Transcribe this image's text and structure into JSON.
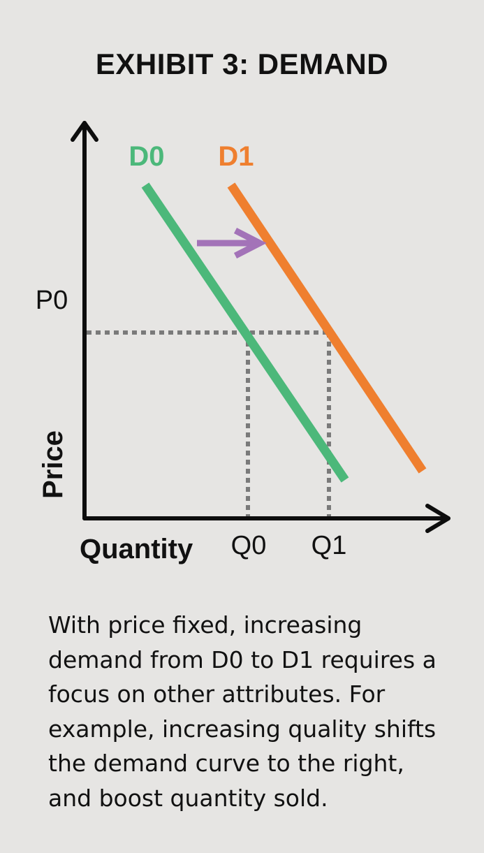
{
  "title": "EXHIBIT 3: DEMAND",
  "chart_data": {
    "type": "line",
    "xlabel": "Quantity",
    "ylabel": "Price",
    "series": [
      {
        "name": "D0",
        "color": "#4cb87a"
      },
      {
        "name": "D1",
        "color": "#ef7f2f"
      }
    ],
    "price_marker": "P0",
    "quantity_markers": [
      "Q0",
      "Q1"
    ],
    "shift_arrow": {
      "from": "D0",
      "to": "D1",
      "color": "#a373b8"
    },
    "reference_line_color": "#7a7a7a"
  },
  "caption": "With price fixed, increasing demand from D0 to D1 requires a focus on other attributes. For example, increasing quality shifts the demand curve to the right, and boost quantity sold."
}
